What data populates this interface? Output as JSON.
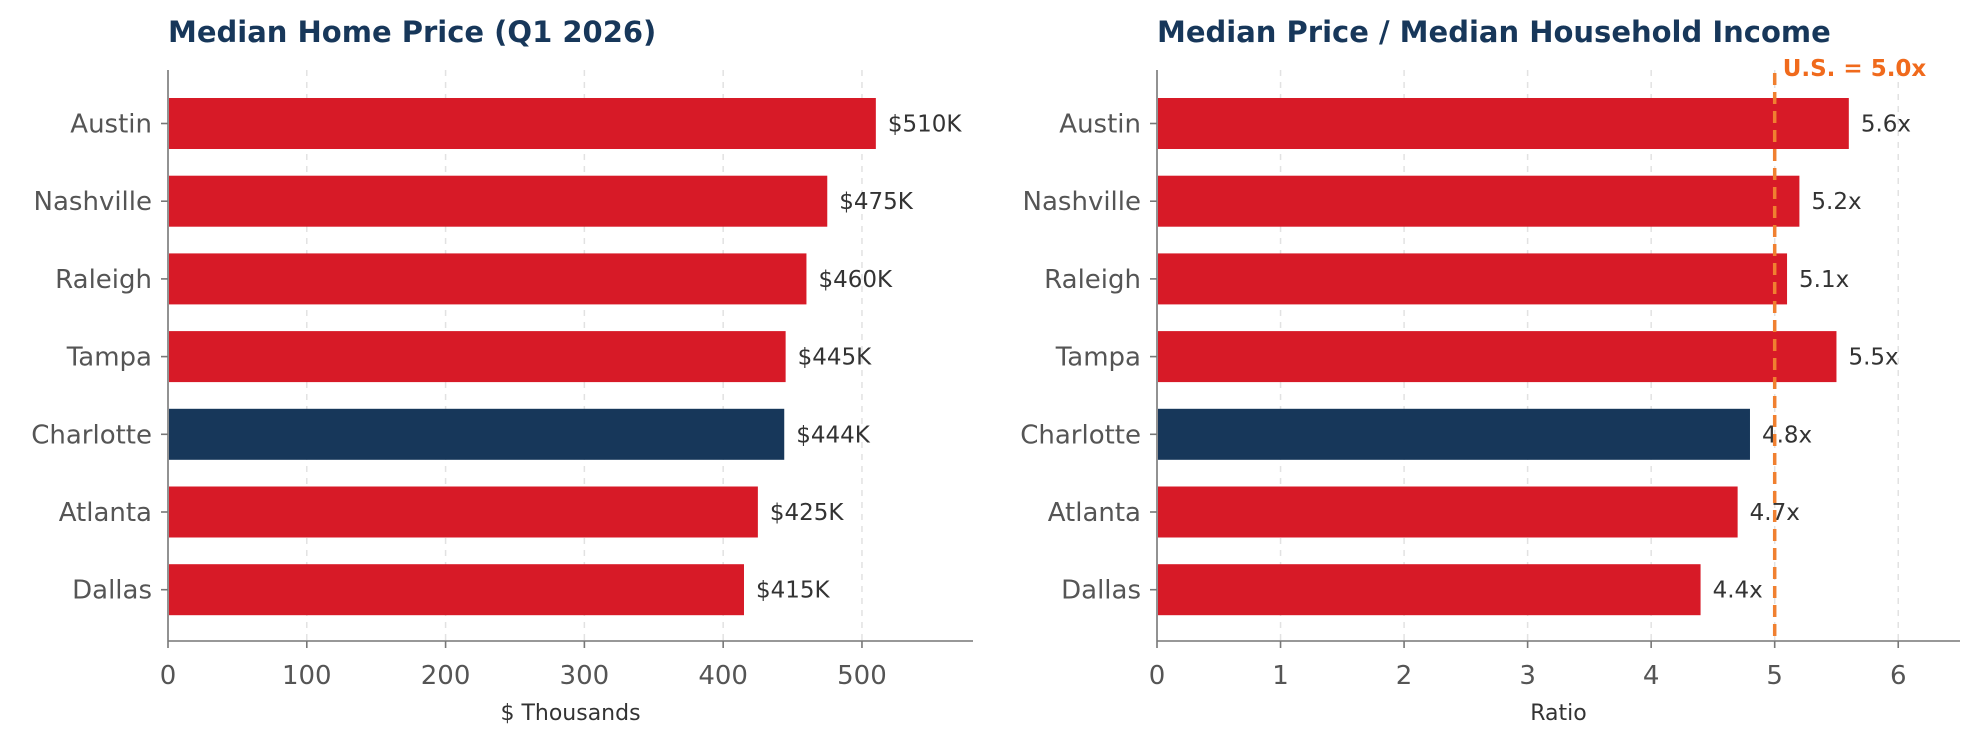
{
  "chart_data": [
    {
      "type": "bar",
      "orientation": "horizontal",
      "title": "Median Home Price (Q1 2026)",
      "xlabel": "$ Thousands",
      "ylabel": "",
      "categories": [
        "Austin",
        "Nashville",
        "Raleigh",
        "Tampa",
        "Charlotte",
        "Atlanta",
        "Dallas"
      ],
      "values": [
        510,
        475,
        460,
        445,
        444,
        425,
        415
      ],
      "data_labels": [
        "$510K",
        "$475K",
        "$460K",
        "$445K",
        "$444K",
        "$425K",
        "$415K"
      ],
      "highlight_category": "Charlotte",
      "xlim": [
        0,
        580
      ],
      "xticks": [
        0,
        100,
        200,
        300,
        400,
        500
      ],
      "grid": "x, dashed",
      "legend": "none",
      "colors": {
        "default": "#d71a27",
        "highlight": "#17375a"
      }
    },
    {
      "type": "bar",
      "orientation": "horizontal",
      "title": "Median Price / Median Household Income",
      "xlabel": "Ratio",
      "ylabel": "",
      "categories": [
        "Austin",
        "Nashville",
        "Raleigh",
        "Tampa",
        "Charlotte",
        "Atlanta",
        "Dallas"
      ],
      "values": [
        5.6,
        5.2,
        5.1,
        5.5,
        4.8,
        4.7,
        4.4
      ],
      "data_labels": [
        "5.6x",
        "5.2x",
        "5.1x",
        "5.5x",
        "4.8x",
        "4.7x",
        "4.4x"
      ],
      "highlight_category": "Charlotte",
      "xlim": [
        0,
        6.5
      ],
      "xticks": [
        0,
        1,
        2,
        3,
        4,
        5,
        6
      ],
      "grid": "x, dashed",
      "legend": "none",
      "reference_line": {
        "value": 5.0,
        "label": "U.S. = 5.0x",
        "style": "dashed",
        "color": "#f08030"
      },
      "colors": {
        "default": "#d71a27",
        "highlight": "#17375a"
      }
    }
  ]
}
